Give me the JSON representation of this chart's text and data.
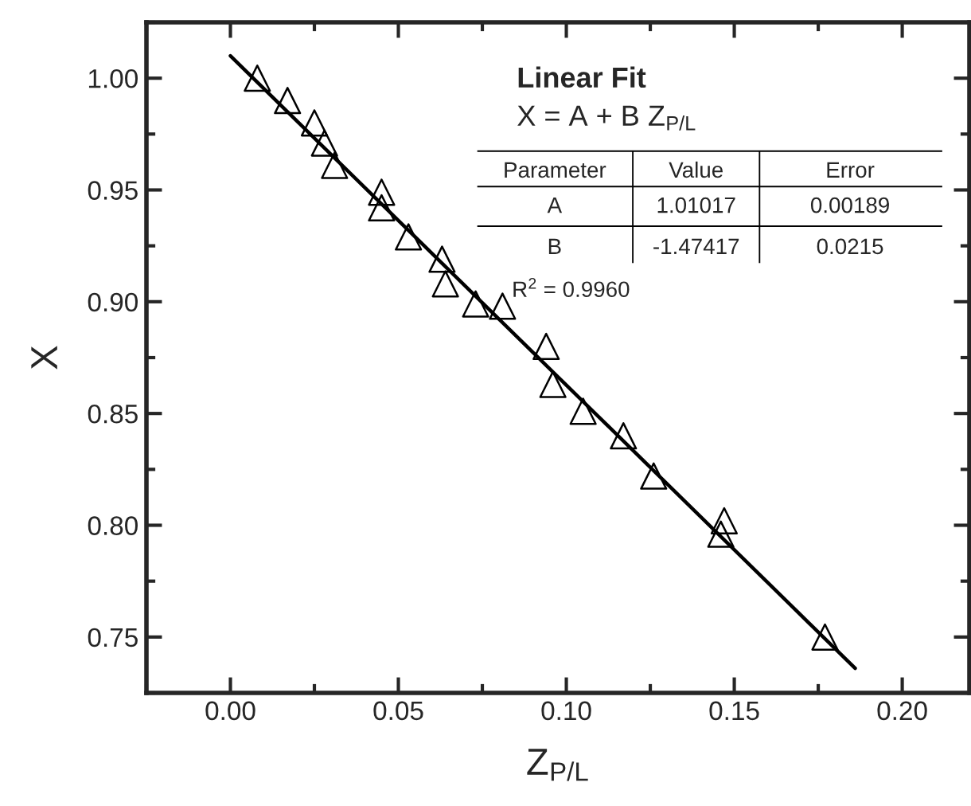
{
  "chart_data": {
    "type": "scatter",
    "xlabel": "Z$_{P/L}$",
    "ylabel": "X",
    "xlim": [
      -0.025,
      0.22
    ],
    "ylim": [
      0.725,
      1.025
    ],
    "xticks": [
      {
        "value": 0.0,
        "label": "0.00"
      },
      {
        "value": 0.05,
        "label": "0.05"
      },
      {
        "value": 0.1,
        "label": "0.10"
      },
      {
        "value": 0.15,
        "label": "0.15"
      },
      {
        "value": 0.2,
        "label": "0.20"
      }
    ],
    "yticks": [
      {
        "value": 0.75,
        "label": "0.75"
      },
      {
        "value": 0.8,
        "label": "0.80"
      },
      {
        "value": 0.85,
        "label": "0.85"
      },
      {
        "value": 0.9,
        "label": "0.90"
      },
      {
        "value": 0.95,
        "label": "0.95"
      },
      {
        "value": 1.0,
        "label": "1.00"
      }
    ],
    "grid": false,
    "legend": false,
    "series": [
      {
        "type": "scatter",
        "marker": "triangle",
        "color": "#000000",
        "x": [
          0.008,
          0.017,
          0.025,
          0.028,
          0.031,
          0.045,
          0.045,
          0.053,
          0.063,
          0.064,
          0.073,
          0.081,
          0.094,
          0.096,
          0.105,
          0.117,
          0.126,
          0.147,
          0.146,
          0.177
        ],
        "values": [
          1.0,
          0.99,
          0.98,
          0.971,
          0.961,
          0.949,
          0.942,
          0.929,
          0.919,
          0.908,
          0.899,
          0.898,
          0.88,
          0.863,
          0.851,
          0.84,
          0.822,
          0.802,
          0.796,
          0.75
        ]
      },
      {
        "type": "line",
        "marker": "none",
        "line_style": "solid",
        "color": "#000000",
        "x": [
          0.0,
          0.186
        ],
        "values": [
          1.01,
          0.736
        ]
      }
    ],
    "annotations": [
      "Linear Fit",
      "X = A + B Z$_{P/L}$",
      "Parameter",
      "Value",
      "Error",
      "A",
      "1.01017",
      "0.00189",
      "B",
      "-1.47417",
      "0.0215",
      "R$^{2}$ = 0.9960"
    ]
  }
}
